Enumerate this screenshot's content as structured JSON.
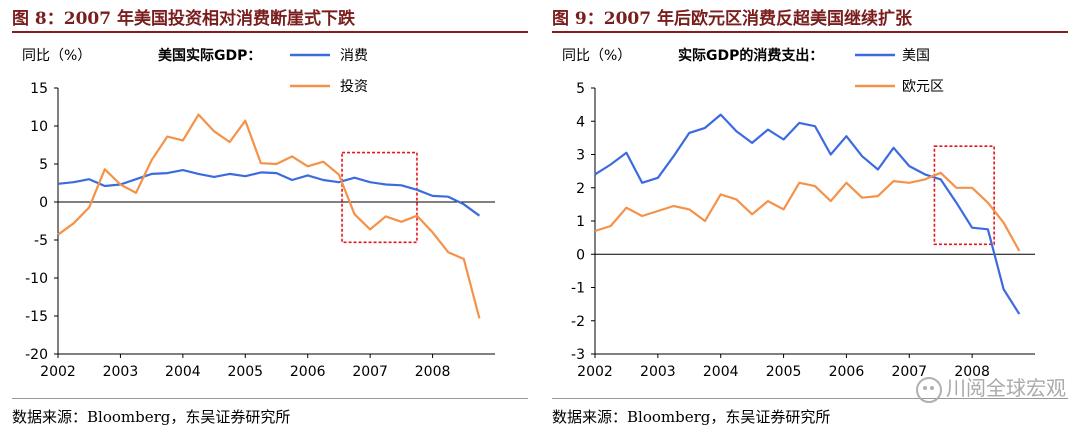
{
  "watermark": "川阅全球宏观",
  "chart_data": [
    {
      "type": "line",
      "title": "图 8：2007 年美国投资相对消费断崖式下跌",
      "ylabel": "同比（%）",
      "legend_title": "美国实际GDP：",
      "source": "数据来源：Bloomberg，东吴证券研究所",
      "xlim": [
        2002,
        2009
      ],
      "ylim": [
        -20,
        15
      ],
      "yticks": [
        15,
        10,
        5,
        0,
        -5,
        -10,
        -15,
        -20
      ],
      "xticks": [
        2002,
        2003,
        2004,
        2005,
        2006,
        2007,
        2008
      ],
      "highlight": {
        "x": [
          2006.55,
          2007.75
        ],
        "y": [
          -5.3,
          6.5
        ],
        "color": "#e8141b"
      },
      "series": [
        {
          "name": "消费",
          "color": "#3c6be0",
          "x": [
            2002.0,
            2002.25,
            2002.5,
            2002.75,
            2003.0,
            2003.25,
            2003.5,
            2003.75,
            2004.0,
            2004.25,
            2004.5,
            2004.75,
            2005.0,
            2005.25,
            2005.5,
            2005.75,
            2006.0,
            2006.25,
            2006.5,
            2006.75,
            2007.0,
            2007.25,
            2007.5,
            2007.75,
            2008.0,
            2008.25,
            2008.5,
            2008.75
          ],
          "values": [
            2.4,
            2.6,
            3.0,
            2.1,
            2.3,
            3.0,
            3.7,
            3.8,
            4.2,
            3.7,
            3.3,
            3.7,
            3.4,
            3.9,
            3.8,
            2.9,
            3.5,
            2.9,
            2.6,
            3.2,
            2.6,
            2.3,
            2.2,
            1.6,
            0.8,
            0.7,
            -0.3,
            -1.8
          ]
        },
        {
          "name": "投资",
          "color": "#f5924a",
          "x": [
            2002.0,
            2002.25,
            2002.5,
            2002.75,
            2003.0,
            2003.25,
            2003.5,
            2003.75,
            2004.0,
            2004.25,
            2004.5,
            2004.75,
            2005.0,
            2005.25,
            2005.5,
            2005.75,
            2006.0,
            2006.25,
            2006.5,
            2006.75,
            2007.0,
            2007.25,
            2007.5,
            2007.75,
            2008.0,
            2008.25,
            2008.5,
            2008.75
          ],
          "values": [
            -4.3,
            -2.8,
            -0.7,
            4.3,
            2.3,
            1.2,
            5.5,
            8.6,
            8.1,
            11.5,
            9.3,
            7.9,
            10.7,
            5.1,
            5.0,
            6.0,
            4.7,
            5.3,
            3.6,
            -1.6,
            -3.6,
            -1.9,
            -2.6,
            -1.8,
            -4.0,
            -6.6,
            -7.5,
            -15.3
          ]
        }
      ]
    },
    {
      "type": "line",
      "title": "图 9：2007 年后欧元区消费反超美国继续扩张",
      "ylabel": "同比（%）",
      "legend_title": "实际GDP的消费支出：",
      "source": "数据来源：Bloomberg，东吴证券研究所",
      "xlim": [
        2002,
        2009
      ],
      "ylim": [
        -3,
        5
      ],
      "yticks": [
        5,
        4,
        3,
        2,
        1,
        0,
        -1,
        -2,
        -3
      ],
      "xticks": [
        2002,
        2003,
        2004,
        2005,
        2006,
        2007,
        2008
      ],
      "highlight": {
        "x": [
          2007.4,
          2008.35
        ],
        "y": [
          0.3,
          3.25
        ],
        "color": "#e8141b"
      },
      "series": [
        {
          "name": "美国",
          "color": "#3c6be0",
          "x": [
            2002.0,
            2002.25,
            2002.5,
            2002.75,
            2003.0,
            2003.25,
            2003.5,
            2003.75,
            2004.0,
            2004.25,
            2004.5,
            2004.75,
            2005.0,
            2005.25,
            2005.5,
            2005.75,
            2006.0,
            2006.25,
            2006.5,
            2006.75,
            2007.0,
            2007.25,
            2007.5,
            2007.75,
            2008.0,
            2008.25,
            2008.5,
            2008.75
          ],
          "values": [
            2.4,
            2.7,
            3.05,
            2.15,
            2.3,
            2.95,
            3.65,
            3.8,
            4.2,
            3.7,
            3.35,
            3.75,
            3.45,
            3.95,
            3.85,
            3.0,
            3.55,
            2.95,
            2.55,
            3.2,
            2.65,
            2.4,
            2.25,
            1.55,
            0.8,
            0.75,
            -1.05,
            -1.8
          ]
        },
        {
          "name": "欧元区",
          "color": "#f5924a",
          "x": [
            2002.0,
            2002.25,
            2002.5,
            2002.75,
            2003.0,
            2003.25,
            2003.5,
            2003.75,
            2004.0,
            2004.25,
            2004.5,
            2004.75,
            2005.0,
            2005.25,
            2005.5,
            2005.75,
            2006.0,
            2006.25,
            2006.5,
            2006.75,
            2007.0,
            2007.25,
            2007.5,
            2007.75,
            2008.0,
            2008.25,
            2008.5,
            2008.75
          ],
          "values": [
            0.7,
            0.85,
            1.4,
            1.15,
            1.3,
            1.45,
            1.35,
            1.0,
            1.8,
            1.65,
            1.2,
            1.6,
            1.35,
            2.15,
            2.05,
            1.6,
            2.15,
            1.7,
            1.75,
            2.2,
            2.15,
            2.25,
            2.45,
            2.0,
            2.0,
            1.55,
            0.95,
            0.1
          ]
        }
      ]
    }
  ]
}
